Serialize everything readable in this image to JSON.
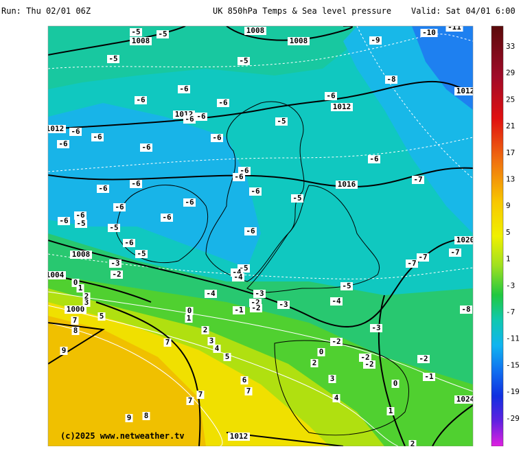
{
  "header": {
    "run": "Run: Thu 02/01 06Z",
    "title": "UK 850hPa Temps & Sea level pressure",
    "valid": "Valid: Sat 04/01 6:00"
  },
  "footer": "(c)2025 www.netweather.tv",
  "colorbar": {
    "labels": [
      33,
      29,
      25,
      21,
      17,
      13,
      9,
      5,
      1,
      -3,
      -7,
      -11,
      -15,
      -19,
      -29
    ]
  },
  "map": {
    "isobar_labels": [
      1008,
      1008,
      1008,
      1012,
      1012,
      1012,
      1016,
      1020,
      1008,
      1004,
      1000,
      1012,
      1012,
      1024
    ],
    "temperature_labels": [
      -5,
      -5,
      -5,
      -5,
      -5,
      -5,
      -5,
      -5,
      -5,
      -5,
      -5,
      -6,
      -6,
      -6,
      -6,
      -6,
      -6,
      -6,
      -6,
      -6,
      -6,
      -6,
      -6,
      -6,
      -6,
      -6,
      -6,
      -6,
      -6,
      -6,
      -6,
      -6,
      -6,
      -6,
      -6,
      -7,
      -7,
      -7,
      -7,
      -8,
      -8,
      -9,
      -10,
      -11,
      -4,
      -4,
      -4,
      -4,
      -3,
      -3,
      -3,
      -3,
      -2,
      -2,
      -2,
      -2,
      -2,
      -2,
      -2,
      -1,
      -1,
      0,
      0,
      0,
      0,
      1,
      1,
      1,
      2,
      2,
      2,
      2,
      3,
      3,
      3,
      4,
      4,
      5,
      5,
      6,
      7,
      7,
      7,
      7,
      7,
      8,
      8,
      9,
      9
    ]
  }
}
